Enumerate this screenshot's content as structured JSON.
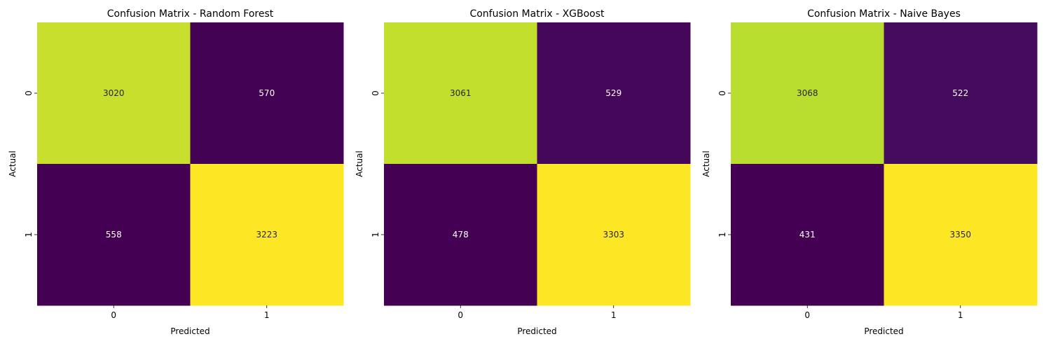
{
  "chart_data": [
    {
      "type": "heatmap",
      "title": "Confusion Matrix - Random Forest",
      "xlabel": "Predicted",
      "ylabel": "Actual",
      "x_categories": [
        "0",
        "1"
      ],
      "y_categories": [
        "0",
        "1"
      ],
      "values": [
        [
          3020,
          570
        ],
        [
          558,
          3223
        ]
      ],
      "colormap": "viridis",
      "colorbar": false,
      "grid": false
    },
    {
      "type": "heatmap",
      "title": "Confusion Matrix - XGBoost",
      "xlabel": "Predicted",
      "ylabel": "Actual",
      "x_categories": [
        "0",
        "1"
      ],
      "y_categories": [
        "0",
        "1"
      ],
      "values": [
        [
          3061,
          529
        ],
        [
          478,
          3303
        ]
      ],
      "colormap": "viridis",
      "colorbar": false,
      "grid": false
    },
    {
      "type": "heatmap",
      "title": "Confusion Matrix - Naive Bayes",
      "xlabel": "Predicted",
      "ylabel": "Actual",
      "x_categories": [
        "0",
        "1"
      ],
      "y_categories": [
        "0",
        "1"
      ],
      "values": [
        [
          3068,
          522
        ],
        [
          431,
          3350
        ]
      ],
      "colormap": "viridis",
      "colorbar": false,
      "grid": false
    }
  ],
  "colors": {
    "low_cell": "#440154",
    "high_cell": "#fde725",
    "text_on_light": "#262626",
    "text_on_dark": "#ffffff"
  }
}
